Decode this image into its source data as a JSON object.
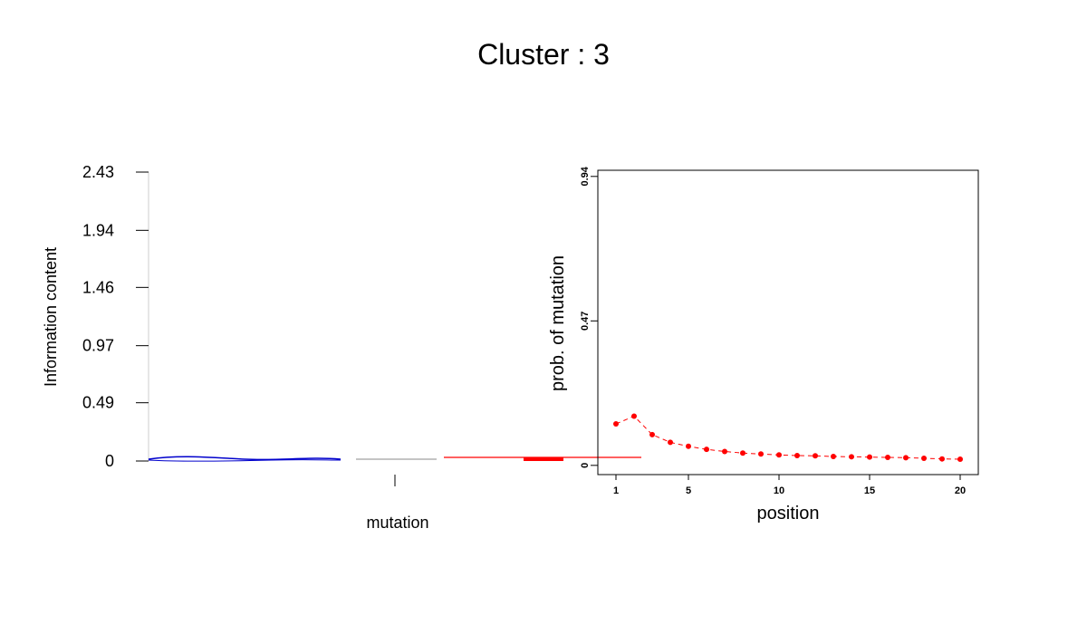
{
  "title": "Cluster : 3",
  "chart_data": [
    {
      "type": "logo",
      "ylabel": "Information content",
      "xlabel": "mutation",
      "yticks": [
        "0",
        "0.49",
        "0.97",
        "1.46",
        "1.94",
        "2.43"
      ],
      "ylim": [
        0,
        2.43
      ],
      "colors": {
        "left": "#0000cc",
        "middle": "#888888",
        "right": "#ff0000"
      }
    },
    {
      "type": "line",
      "xlabel": "position",
      "ylabel": "prob. of mutation",
      "xticks": [
        "1",
        "5",
        "10",
        "15",
        "20"
      ],
      "yticks": [
        "0",
        "0.47",
        "0.94"
      ],
      "xlim": [
        0,
        21
      ],
      "ylim": [
        -0.03,
        0.96
      ],
      "x": [
        1,
        2,
        3,
        4,
        5,
        6,
        7,
        8,
        9,
        10,
        11,
        12,
        13,
        14,
        15,
        16,
        17,
        18,
        19,
        20
      ],
      "y": [
        0.135,
        0.16,
        0.1,
        0.075,
        0.062,
        0.052,
        0.045,
        0.04,
        0.037,
        0.034,
        0.032,
        0.031,
        0.029,
        0.028,
        0.027,
        0.026,
        0.025,
        0.023,
        0.021,
        0.02
      ],
      "color": "#ff0000",
      "grid": false
    }
  ]
}
